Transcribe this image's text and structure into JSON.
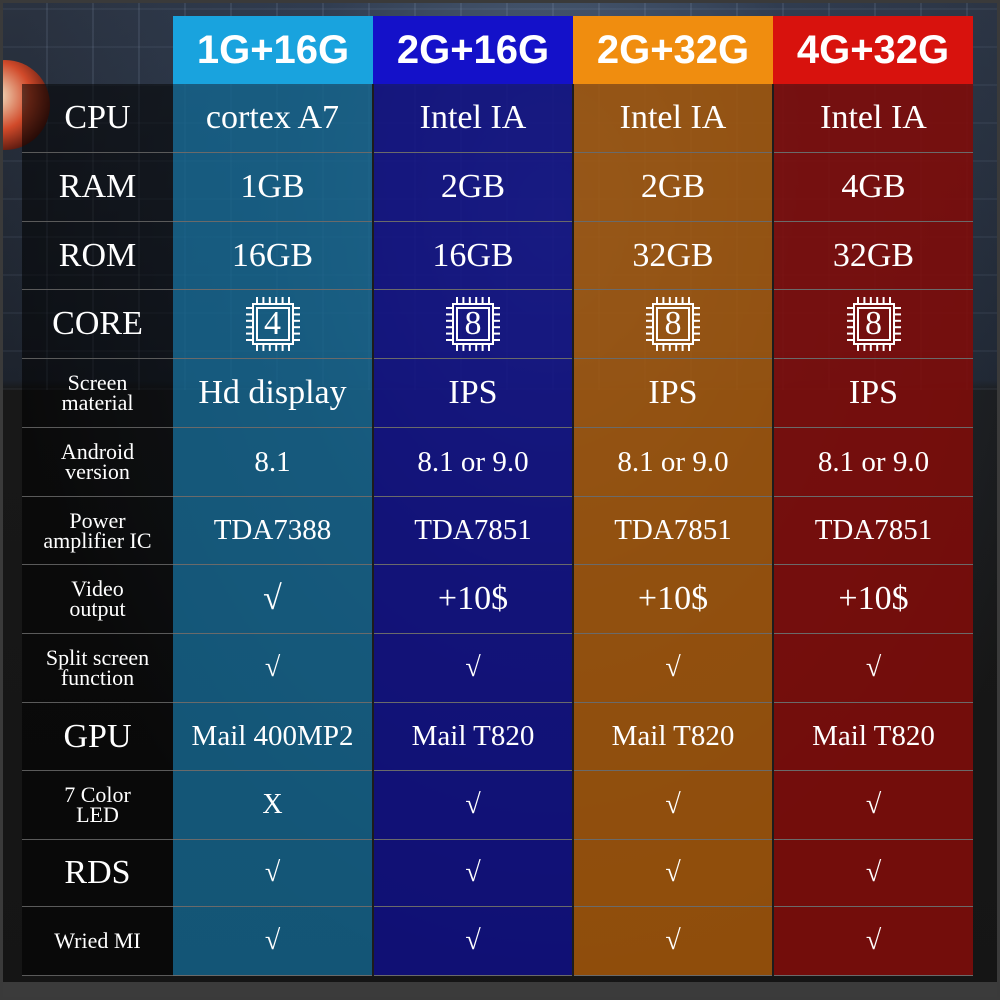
{
  "columns": [
    {
      "header": "1G+16G",
      "color": "#19a3de"
    },
    {
      "header": "2G+16G",
      "color": "#1411c9"
    },
    {
      "header": "2G+32G",
      "color": "#f08d0f"
    },
    {
      "header": "4G+32G",
      "color": "#d8120d"
    }
  ],
  "rows": [
    {
      "label": [
        "CPU"
      ],
      "values": [
        "cortex A7",
        "Intel IA",
        "Intel IA",
        "Intel IA"
      ]
    },
    {
      "label": [
        "RAM"
      ],
      "values": [
        "1GB",
        "2GB",
        "2GB",
        "4GB"
      ]
    },
    {
      "label": [
        "ROM"
      ],
      "values": [
        "16GB",
        "16GB",
        "32GB",
        "32GB"
      ]
    },
    {
      "label": [
        "CORE"
      ],
      "values": [
        "4",
        "8",
        "8",
        "8"
      ],
      "icon": "cpu-chip-icon"
    },
    {
      "label": [
        "Screen",
        "material"
      ],
      "values": [
        "Hd display",
        "IPS",
        "IPS",
        "IPS"
      ]
    },
    {
      "label": [
        "Android",
        "version"
      ],
      "values": [
        "8.1",
        "8.1 or 9.0",
        "8.1 or 9.0",
        "8.1 or 9.0"
      ]
    },
    {
      "label": [
        "Power",
        "amplifier IC"
      ],
      "values": [
        "TDA7388",
        "TDA7851",
        "TDA7851",
        "TDA7851"
      ]
    },
    {
      "label": [
        "Video",
        "output"
      ],
      "values": [
        "√",
        "+10$",
        "+10$",
        "+10$"
      ]
    },
    {
      "label": [
        "Split screen",
        "function"
      ],
      "values": [
        "√",
        "√",
        "√",
        "√"
      ]
    },
    {
      "label": [
        "GPU"
      ],
      "values": [
        "Mail 400MP2",
        "Mail T820",
        "Mail T820",
        "Mail T820"
      ]
    },
    {
      "label": [
        "7 Color",
        "LED"
      ],
      "values": [
        "X",
        "√",
        "√",
        "√"
      ]
    },
    {
      "label": [
        "RDS"
      ],
      "values": [
        "√",
        "√",
        "√",
        "√"
      ]
    },
    {
      "label": [
        "Wried MI"
      ],
      "values": [
        "√",
        "√",
        "√",
        "√"
      ]
    }
  ]
}
